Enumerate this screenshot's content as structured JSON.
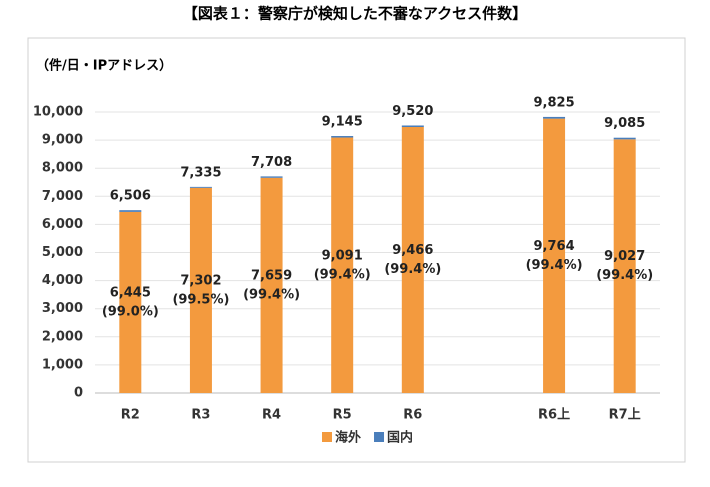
{
  "chart_data": {
    "type": "stacked-bar",
    "title": "【図表１：警察庁が検知した不審なアクセス件数】",
    "y_label": "（件/日・IPアドレス）",
    "categories": [
      "R2",
      "R3",
      "R4",
      "R5",
      "R6",
      null,
      "R6上",
      "R7上"
    ],
    "series": [
      {
        "name": "海外",
        "color": "#f39a3e",
        "values": [
          6445,
          7302,
          7659,
          9091,
          9466,
          null,
          9764,
          9027
        ],
        "value_labels": [
          [
            "6,445",
            "(99.0%)"
          ],
          [
            "7,302",
            "(99.5%)"
          ],
          [
            "7,659",
            "(99.4%)"
          ],
          [
            "9,091",
            "(99.4%)"
          ],
          [
            "9,466",
            "(99.4%)"
          ],
          null,
          [
            "9,764",
            "(99.4%)"
          ],
          [
            "9,027",
            "(99.4%)"
          ]
        ]
      },
      {
        "name": "国内",
        "color": "#4a7ebb",
        "values": [
          61,
          33,
          49,
          54,
          54,
          null,
          61,
          58
        ]
      }
    ],
    "total_labels": [
      "6,506",
      "7,335",
      "7,708",
      "9,145",
      "9,520",
      null,
      "9,825",
      "9,085"
    ],
    "ylim": [
      0,
      10000
    ],
    "yticks": [
      0,
      {
        "value": 1000,
        "label": "1,000"
      },
      {
        "value": 2000,
        "label": "2,000"
      },
      {
        "value": 3000,
        "label": "3,000"
      },
      {
        "value": 4000,
        "label": "4,000"
      },
      {
        "value": 5000,
        "label": "5,000"
      },
      {
        "value": 6000,
        "label": "6,000"
      },
      {
        "value": 7000,
        "label": "7,000"
      },
      {
        "value": 8000,
        "label": "8,000"
      },
      {
        "value": 9000,
        "label": "9,000"
      },
      {
        "value": 10000,
        "label": "10,000"
      }
    ],
    "grid": true,
    "legend": "bottom"
  }
}
